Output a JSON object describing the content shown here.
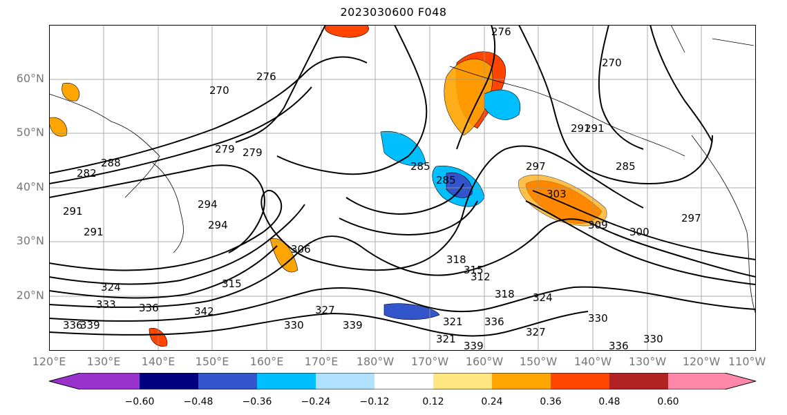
{
  "title": "2023030600 F048",
  "lat_labels": [
    "60°N",
    "50°N",
    "40°N",
    "30°N",
    "20°N"
  ],
  "lon_labels": [
    "120°E",
    "130°E",
    "140°E",
    "150°E",
    "160°E",
    "170°E",
    "180°W",
    "170°W",
    "160°W",
    "150°W",
    "140°W",
    "130°W",
    "120°W",
    "110°W"
  ],
  "colorbar": {
    "colors": [
      "#9932cc",
      "#000080",
      "#3355cc",
      "#00bfff",
      "#b0e2ff",
      "#ffffff",
      "#ffe680",
      "#ffa500",
      "#ff4500",
      "#b22222",
      "#ff88aa"
    ],
    "tick_labels": [
      "−0.60",
      "−0.48",
      "−0.36",
      "−0.24",
      "−0.12",
      "0.12",
      "0.24",
      "0.36",
      "0.48",
      "0.60"
    ]
  },
  "contour_labels": [
    "270",
    "276",
    "279",
    "285",
    "291",
    "294",
    "297",
    "300",
    "303",
    "306",
    "309",
    "312",
    "315",
    "318",
    "321",
    "324",
    "327",
    "330",
    "333",
    "336",
    "339",
    "342"
  ],
  "contour_label_instances": [
    "270",
    "276",
    "279",
    "276",
    "285",
    "291",
    "294",
    "297",
    "303",
    "306",
    "309",
    "300",
    "312",
    "315",
    "318",
    "321",
    "324",
    "327",
    "333",
    "336",
    "339",
    "342",
    "336",
    "339",
    "330",
    "330",
    "336",
    "270",
    "279",
    "291",
    "285",
    "297",
    "282",
    "288",
    "291",
    "285",
    "291",
    "294",
    "327",
    "330",
    "324",
    "321",
    "315",
    "336",
    "339",
    "318"
  ]
}
